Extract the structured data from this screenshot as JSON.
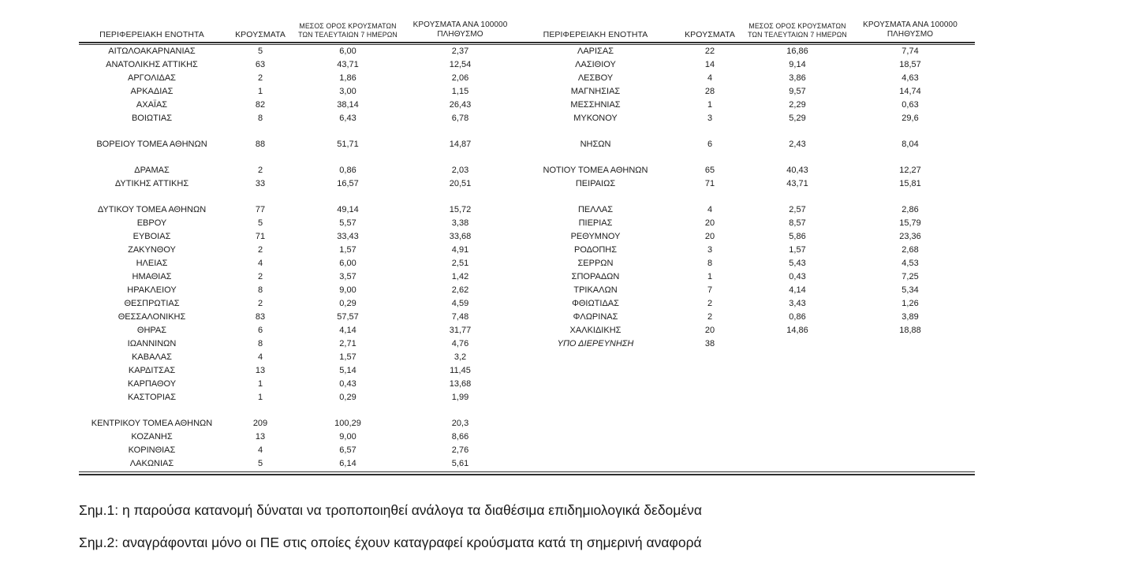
{
  "table": {
    "headers": {
      "region": "ΠΕΡΙΦΕΡΕΙΑΚΗ ΕΝΟΤΗΤΑ",
      "cases": "ΚΡΟΥΣΜΑΤΑ",
      "avg7_line1": "ΜΕΣΟΣ ΟΡΟΣ ΚΡΟΥΣΜΑΤΩΝ",
      "avg7_line2": "ΤΩΝ ΤΕΛΕΥΤΑΙΩΝ 7 ΗΜΕΡΩΝ",
      "per100k_line1": "ΚΡΟΥΣΜΑΤΑ ΑΝΑ 100000",
      "per100k_line2": "ΠΛΗΘΥΣΜΟ"
    },
    "rows": [
      {
        "left": {
          "region": "ΑΙΤΩΛΟΑΚΑΡΝΑΝΙΑΣ",
          "cases": "5",
          "avg7": "6,00",
          "per100k": "2,37"
        },
        "right": {
          "region": "ΛΑΡΙΣΑΣ",
          "cases": "22",
          "avg7": "16,86",
          "per100k": "7,74"
        }
      },
      {
        "left": {
          "region": "ΑΝΑΤΟΛΙΚΗΣ ΑΤΤΙΚΗΣ",
          "cases": "63",
          "avg7": "43,71",
          "per100k": "12,54"
        },
        "right": {
          "region": "ΛΑΣΙΘΙΟΥ",
          "cases": "14",
          "avg7": "9,14",
          "per100k": "18,57"
        }
      },
      {
        "left": {
          "region": "ΑΡΓΟΛΙΔΑΣ",
          "cases": "2",
          "avg7": "1,86",
          "per100k": "2,06"
        },
        "right": {
          "region": "ΛΕΣΒΟΥ",
          "cases": "4",
          "avg7": "3,86",
          "per100k": "4,63"
        }
      },
      {
        "left": {
          "region": "ΑΡΚΑΔΙΑΣ",
          "cases": "1",
          "avg7": "3,00",
          "per100k": "1,15"
        },
        "right": {
          "region": "ΜΑΓΝΗΣΙΑΣ",
          "cases": "28",
          "avg7": "9,57",
          "per100k": "14,74"
        }
      },
      {
        "left": {
          "region": "ΑΧΑΪΑΣ",
          "cases": "82",
          "avg7": "38,14",
          "per100k": "26,43"
        },
        "right": {
          "region": "ΜΕΣΣΗΝΙΑΣ",
          "cases": "1",
          "avg7": "2,29",
          "per100k": "0,63"
        }
      },
      {
        "left": {
          "region": "ΒΟΙΩΤΙΑΣ",
          "cases": "8",
          "avg7": "6,43",
          "per100k": "6,78"
        },
        "right": {
          "region": "ΜΥΚΟΝΟΥ",
          "cases": "3",
          "avg7": "5,29",
          "per100k": "29,6"
        }
      },
      {
        "blank": true
      },
      {
        "left": {
          "region": "ΒΟΡΕΙΟΥ ΤΟΜΕΑ ΑΘΗΝΩΝ",
          "cases": "88",
          "avg7": "51,71",
          "per100k": "14,87"
        },
        "right": {
          "region": "ΝΗΣΩΝ",
          "cases": "6",
          "avg7": "2,43",
          "per100k": "8,04"
        }
      },
      {
        "blank": true
      },
      {
        "left": {
          "region": "ΔΡΑΜΑΣ",
          "cases": "2",
          "avg7": "0,86",
          "per100k": "2,03"
        },
        "right": {
          "region": "ΝΟΤΙΟΥ ΤΟΜΕΑ ΑΘΗΝΩΝ",
          "cases": "65",
          "avg7": "40,43",
          "per100k": "12,27"
        }
      },
      {
        "left": {
          "region": "ΔΥΤΙΚΗΣ ΑΤΤΙΚΗΣ",
          "cases": "33",
          "avg7": "16,57",
          "per100k": "20,51"
        },
        "right": {
          "region": "ΠΕΙΡΑΙΩΣ",
          "cases": "71",
          "avg7": "43,71",
          "per100k": "15,81"
        }
      },
      {
        "blank": true
      },
      {
        "left": {
          "region": "ΔΥΤΙΚΟΥ ΤΟΜΕΑ ΑΘΗΝΩΝ",
          "cases": "77",
          "avg7": "49,14",
          "per100k": "15,72"
        },
        "right": {
          "region": "ΠΕΛΛΑΣ",
          "cases": "4",
          "avg7": "2,57",
          "per100k": "2,86"
        }
      },
      {
        "left": {
          "region": "ΕΒΡΟΥ",
          "cases": "5",
          "avg7": "5,57",
          "per100k": "3,38"
        },
        "right": {
          "region": "ΠΙΕΡΙΑΣ",
          "cases": "20",
          "avg7": "8,57",
          "per100k": "15,79"
        }
      },
      {
        "left": {
          "region": "ΕΥΒΟΙΑΣ",
          "cases": "71",
          "avg7": "33,43",
          "per100k": "33,68"
        },
        "right": {
          "region": "ΡΕΘΥΜΝΟΥ",
          "cases": "20",
          "avg7": "5,86",
          "per100k": "23,36"
        }
      },
      {
        "left": {
          "region": "ΖΑΚΥΝΘΟΥ",
          "cases": "2",
          "avg7": "1,57",
          "per100k": "4,91"
        },
        "right": {
          "region": "ΡΟΔΟΠΗΣ",
          "cases": "3",
          "avg7": "1,57",
          "per100k": "2,68"
        }
      },
      {
        "left": {
          "region": "ΗΛΕΙΑΣ",
          "cases": "4",
          "avg7": "6,00",
          "per100k": "2,51"
        },
        "right": {
          "region": "ΣΕΡΡΩΝ",
          "cases": "8",
          "avg7": "5,43",
          "per100k": "4,53"
        }
      },
      {
        "left": {
          "region": "ΗΜΑΘΙΑΣ",
          "cases": "2",
          "avg7": "3,57",
          "per100k": "1,42"
        },
        "right": {
          "region": "ΣΠΟΡΑΔΩΝ",
          "cases": "1",
          "avg7": "0,43",
          "per100k": "7,25"
        }
      },
      {
        "left": {
          "region": "ΗΡΑΚΛΕΙΟΥ",
          "cases": "8",
          "avg7": "9,00",
          "per100k": "2,62"
        },
        "right": {
          "region": "ΤΡΙΚΑΛΩΝ",
          "cases": "7",
          "avg7": "4,14",
          "per100k": "5,34"
        }
      },
      {
        "left": {
          "region": "ΘΕΣΠΡΩΤΙΑΣ",
          "cases": "2",
          "avg7": "0,29",
          "per100k": "4,59"
        },
        "right": {
          "region": "ΦΘΙΩΤΙΔΑΣ",
          "cases": "2",
          "avg7": "3,43",
          "per100k": "1,26"
        }
      },
      {
        "left": {
          "region": "ΘΕΣΣΑΛΟΝΙΚΗΣ",
          "cases": "83",
          "avg7": "57,57",
          "per100k": "7,48"
        },
        "right": {
          "region": "ΦΛΩΡΙΝΑΣ",
          "cases": "2",
          "avg7": "0,86",
          "per100k": "3,89"
        }
      },
      {
        "left": {
          "region": "ΘΗΡΑΣ",
          "cases": "6",
          "avg7": "4,14",
          "per100k": "31,77"
        },
        "right": {
          "region": "ΧΑΛΚΙΔΙΚΗΣ",
          "cases": "20",
          "avg7": "14,86",
          "per100k": "18,88"
        }
      },
      {
        "left": {
          "region": "ΙΩΑΝΝΙΝΩΝ",
          "cases": "8",
          "avg7": "2,71",
          "per100k": "4,76"
        },
        "right": {
          "region": "ΥΠΟ ΔΙΕΡΕΥΝΗΣΗ",
          "cases": "38",
          "avg7": "",
          "per100k": "",
          "italic": true
        }
      },
      {
        "left": {
          "region": "ΚΑΒΑΛΑΣ",
          "cases": "4",
          "avg7": "1,57",
          "per100k": "3,2"
        },
        "right": null
      },
      {
        "left": {
          "region": "ΚΑΡΔΙΤΣΑΣ",
          "cases": "13",
          "avg7": "5,14",
          "per100k": "11,45"
        },
        "right": null
      },
      {
        "left": {
          "region": "ΚΑΡΠΑΘΟΥ",
          "cases": "1",
          "avg7": "0,43",
          "per100k": "13,68"
        },
        "right": null
      },
      {
        "left": {
          "region": "ΚΑΣΤΟΡΙΑΣ",
          "cases": "1",
          "avg7": "0,29",
          "per100k": "1,99"
        },
        "right": null
      },
      {
        "blank": true
      },
      {
        "left": {
          "region": "ΚΕΝΤΡΙΚΟΥ ΤΟΜΕΑ ΑΘΗΝΩΝ",
          "cases": "209",
          "avg7": "100,29",
          "per100k": "20,3"
        },
        "right": null
      },
      {
        "left": {
          "region": "ΚΟΖΑΝΗΣ",
          "cases": "13",
          "avg7": "9,00",
          "per100k": "8,66"
        },
        "right": null
      },
      {
        "left": {
          "region": "ΚΟΡΙΝΘΙΑΣ",
          "cases": "4",
          "avg7": "6,57",
          "per100k": "2,76"
        },
        "right": null
      },
      {
        "left": {
          "region": "ΛΑΚΩΝΙΑΣ",
          "cases": "5",
          "avg7": "6,14",
          "per100k": "5,61"
        },
        "right": null
      }
    ]
  },
  "notes": [
    "Σημ.1: η παρούσα κατανομή δύναται να τροποποιηθεί ανάλογα τα διαθέσιμα επιδημιολογικά δεδομένα",
    "Σημ.2: αναγράφονται μόνο οι ΠΕ στις οποίες έχουν καταγραφεί κρούσματα κατά τη σημερινή αναφορά"
  ]
}
